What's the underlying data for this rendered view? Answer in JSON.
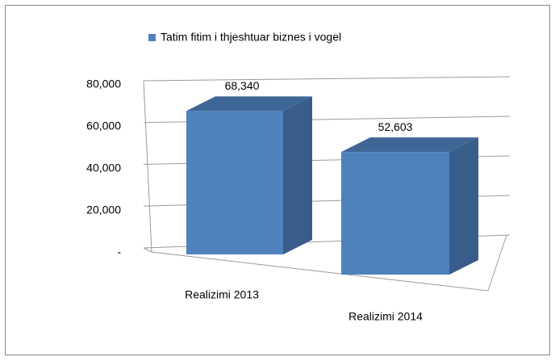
{
  "chart_data": {
    "type": "bar3d",
    "categories": [
      "Realizimi 2013",
      "Realizimi 2014"
    ],
    "series": [
      {
        "name": "Tatim fitim i thjeshtuar biznes i vogel",
        "color": "#4f81bd",
        "values": [
          68340,
          52603
        ],
        "value_labels": [
          "68,340",
          "52,603"
        ]
      }
    ],
    "ylim": [
      0,
      80000
    ],
    "yticks": [
      {
        "value": 0,
        "label": "-"
      },
      {
        "value": 20000,
        "label": "20,000"
      },
      {
        "value": 40000,
        "label": "40,000"
      },
      {
        "value": 60000,
        "label": "60,000"
      },
      {
        "value": 80000,
        "label": "80,000"
      }
    ],
    "grid": true,
    "legend": "top"
  }
}
